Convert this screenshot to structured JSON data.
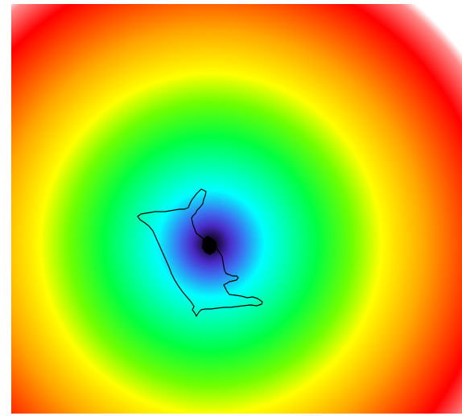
{
  "map": {
    "type": "distance-heatmap",
    "colormap": [
      "#000000",
      "#3a1aa6",
      "#3b3fe8",
      "#00ffff",
      "#00ff00",
      "#ffff00",
      "#ff8c00",
      "#ff0000",
      "#ffffff"
    ],
    "center_marker_color": "#000000",
    "outline_color": "#000000",
    "background_color": "#ffffff"
  }
}
